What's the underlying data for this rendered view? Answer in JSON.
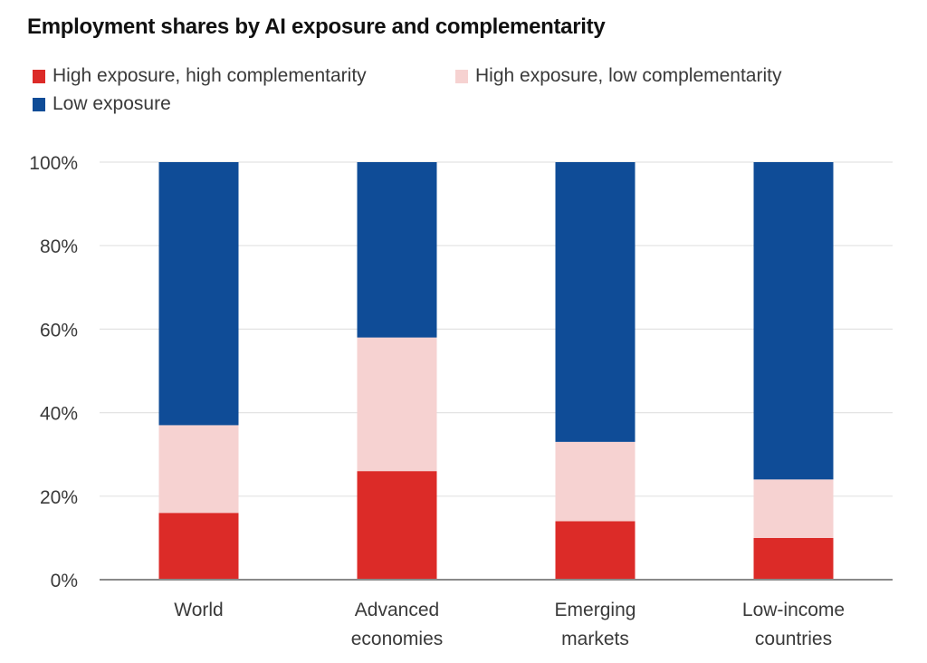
{
  "chart_data": {
    "type": "bar",
    "stacked": true,
    "title": "Employment shares by AI exposure and complementarity",
    "xlabel": "",
    "ylabel": "",
    "ylim": [
      0,
      100
    ],
    "yticks": [
      0,
      20,
      40,
      60,
      80,
      100
    ],
    "ytick_labels": [
      "0%",
      "20%",
      "40%",
      "60%",
      "80%",
      "100%"
    ],
    "grid": true,
    "legend_position": "top-left",
    "categories": [
      [
        "World"
      ],
      [
        "Advanced",
        "economies"
      ],
      [
        "Emerging",
        "markets"
      ],
      [
        "Low-income",
        "countries"
      ]
    ],
    "series": [
      {
        "name": "High exposure, high complementarity",
        "color": "#DC2B28",
        "values": [
          16,
          26,
          14,
          10
        ]
      },
      {
        "name": "High exposure, low complementarity",
        "color": "#F6D2D1",
        "values": [
          21,
          32,
          19,
          14
        ]
      },
      {
        "name": "Low exposure",
        "color": "#0F4C97",
        "values": [
          63,
          42,
          67,
          76
        ]
      }
    ]
  }
}
